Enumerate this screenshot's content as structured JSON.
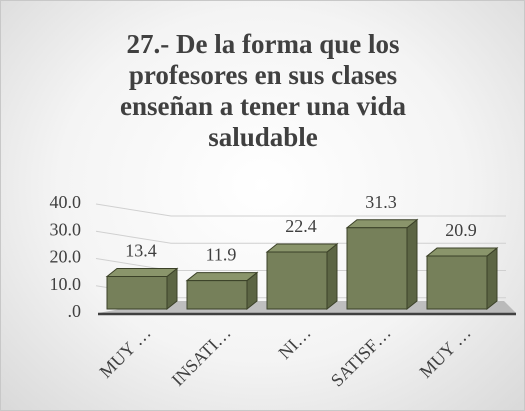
{
  "chart_data": {
    "type": "bar3d",
    "title": "27.- De la forma que los profesores en sus clases enseñan a tener una vida saludable",
    "categories": [
      "MUY …",
      "INSATI…",
      "NI…",
      "SATISF…",
      "MUY …"
    ],
    "values": [
      13.4,
      11.9,
      22.4,
      31.3,
      20.9
    ],
    "color": "#76805a",
    "ylim": [
      0,
      40
    ],
    "yticks": [
      {
        "value": 0,
        "label": ".0"
      },
      {
        "value": 10,
        "label": "10.0"
      },
      {
        "value": 20,
        "label": "20.0"
      },
      {
        "value": 30,
        "label": "30.0"
      },
      {
        "value": 40,
        "label": "40.0"
      }
    ],
    "grid": true
  }
}
